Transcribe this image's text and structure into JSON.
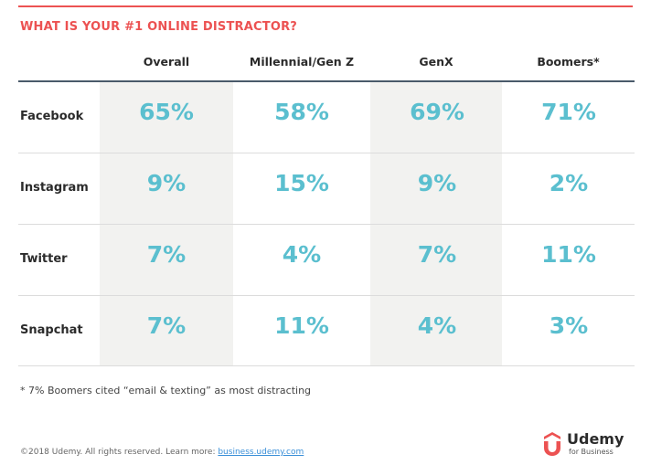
{
  "title": "WHAT IS YOUR #1 ONLINE DISTRACTOR?",
  "chart_data": {
    "type": "table",
    "title": "WHAT IS YOUR #1 ONLINE DISTRACTOR?",
    "columns": [
      "Overall",
      "Millennial/Gen Z",
      "GenX",
      "Boomers*"
    ],
    "rows": [
      {
        "label": "Facebook",
        "cells": [
          "65%",
          "58%",
          "69%",
          "71%"
        ]
      },
      {
        "label": "Instagram",
        "cells": [
          "9%",
          "15%",
          "9%",
          "2%"
        ]
      },
      {
        "label": "Twitter",
        "cells": [
          "7%",
          "4%",
          "7%",
          "11%"
        ]
      },
      {
        "label": "Snapchat",
        "cells": [
          "7%",
          "11%",
          "4%",
          "3%"
        ]
      }
    ],
    "values_percent": [
      [
        65,
        58,
        69,
        71
      ],
      [
        9,
        15,
        9,
        2
      ],
      [
        7,
        4,
        7,
        11
      ],
      [
        7,
        11,
        4,
        3
      ]
    ],
    "value_color": "#5bbfcf",
    "highlight_columns": [
      "Overall",
      "GenX"
    ]
  },
  "footnote": "* 7% Boomers cited “email & texting” as most distracting",
  "copyright": {
    "text": "©2018 Udemy. All rights reserved. Learn more: ",
    "link": "business.udemy.com"
  },
  "logo": {
    "name": "Udemy",
    "sub": "for Business",
    "icon": "udemy-u-icon"
  },
  "colors": {
    "accent": "#ec5252",
    "value": "#5bbfcf",
    "shade": "#f2f2f0",
    "header_rule": "#4a5a6a"
  }
}
